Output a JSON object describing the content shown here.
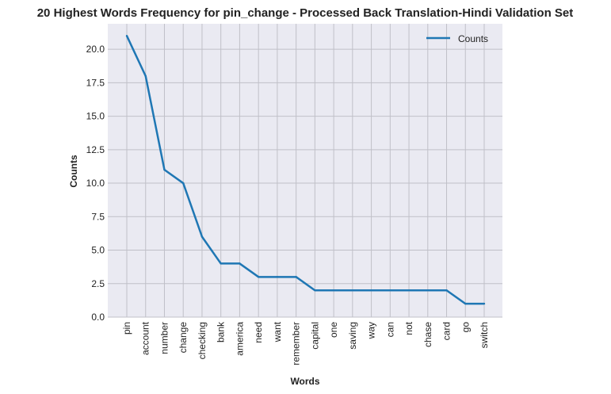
{
  "chart_data": {
    "type": "line",
    "title": "20 Highest Words Frequency for pin_change - Processed Back Translation-Hindi Validation Set",
    "xlabel": "Words",
    "ylabel": "Counts",
    "categories": [
      "pin",
      "account",
      "number",
      "change",
      "checking",
      "bank",
      "america",
      "need",
      "want",
      "remember",
      "capital",
      "one",
      "saving",
      "way",
      "can",
      "not",
      "chase",
      "card",
      "go",
      "switch"
    ],
    "series": [
      {
        "name": "Counts",
        "values": [
          21,
          18,
          11,
          10,
          6,
          4,
          4,
          3,
          3,
          3,
          2,
          2,
          2,
          2,
          2,
          2,
          2,
          2,
          1,
          1
        ]
      }
    ],
    "ylim": [
      0,
      21.9
    ],
    "yticks": [
      "0.0",
      "2.5",
      "5.0",
      "7.5",
      "10.0",
      "12.5",
      "15.0",
      "17.5",
      "20.0"
    ],
    "grid": true,
    "legend_position": "top-right",
    "colors": {
      "line": "#1f77b4",
      "plot_bg": "#eaeaf2",
      "grid": "#c0c0c8"
    }
  }
}
